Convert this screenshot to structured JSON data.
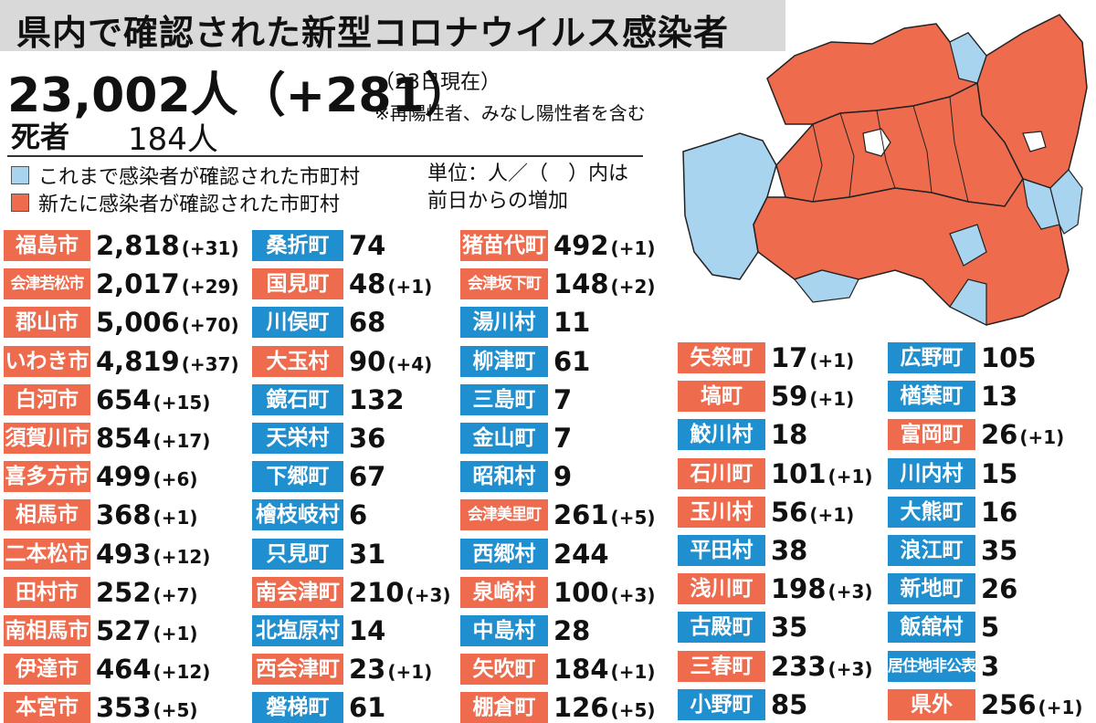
{
  "title": "県内で確認された新型コロナウイルス感染者",
  "summary": {
    "total": "23,002人（+281）",
    "as_of": "（23日現在）",
    "note": "※再陽性者、みなし陽性者を含む",
    "deaths_label": "死者",
    "deaths_value": "184人"
  },
  "legend": {
    "existing": "これまで感染者が確認された市町村",
    "new": "新たに感染者が確認された市町村",
    "unit_line1": "単位：人／（　）内は",
    "unit_line2": "前日からの増加"
  },
  "colors": {
    "new": "#ee6b4d",
    "existing": "#1f8fcf",
    "map_new": "#ee6b4d",
    "map_existing": "#a8d4ef",
    "title_bg": "#d9d9d9"
  },
  "chart_data": {
    "type": "table",
    "columns": [
      {
        "rows": [
          {
            "name": "福島市",
            "value": "2,818",
            "diff": "(+31)",
            "status": "new"
          },
          {
            "name": "会津若松市",
            "value": "2,017",
            "diff": "(+29)",
            "status": "new"
          },
          {
            "name": "郡山市",
            "value": "5,006",
            "diff": "(+70)",
            "status": "new"
          },
          {
            "name": "いわき市",
            "value": "4,819",
            "diff": "(+37)",
            "status": "new"
          },
          {
            "name": "白河市",
            "value": "654",
            "diff": "(+15)",
            "status": "new"
          },
          {
            "name": "須賀川市",
            "value": "854",
            "diff": "(+17)",
            "status": "new"
          },
          {
            "name": "喜多方市",
            "value": "499",
            "diff": "(+6)",
            "status": "new"
          },
          {
            "name": "相馬市",
            "value": "368",
            "diff": "(+1)",
            "status": "new"
          },
          {
            "name": "二本松市",
            "value": "493",
            "diff": "(+12)",
            "status": "new"
          },
          {
            "name": "田村市",
            "value": "252",
            "diff": "(+7)",
            "status": "new"
          },
          {
            "name": "南相馬市",
            "value": "527",
            "diff": "(+1)",
            "status": "new"
          },
          {
            "name": "伊達市",
            "value": "464",
            "diff": "(+12)",
            "status": "new"
          },
          {
            "name": "本宮市",
            "value": "353",
            "diff": "(+5)",
            "status": "new"
          }
        ]
      },
      {
        "rows": [
          {
            "name": "桑折町",
            "value": "74",
            "diff": "",
            "status": "existing"
          },
          {
            "name": "国見町",
            "value": "48",
            "diff": "(+1)",
            "status": "new"
          },
          {
            "name": "川俣町",
            "value": "68",
            "diff": "",
            "status": "existing"
          },
          {
            "name": "大玉村",
            "value": "90",
            "diff": "(+4)",
            "status": "new"
          },
          {
            "name": "鏡石町",
            "value": "132",
            "diff": "",
            "status": "existing"
          },
          {
            "name": "天栄村",
            "value": "36",
            "diff": "",
            "status": "existing"
          },
          {
            "name": "下郷町",
            "value": "67",
            "diff": "",
            "status": "existing"
          },
          {
            "name": "檜枝岐村",
            "value": "6",
            "diff": "",
            "status": "existing"
          },
          {
            "name": "只見町",
            "value": "31",
            "diff": "",
            "status": "existing"
          },
          {
            "name": "南会津町",
            "value": "210",
            "diff": "(+3)",
            "status": "new"
          },
          {
            "name": "北塩原村",
            "value": "14",
            "diff": "",
            "status": "existing"
          },
          {
            "name": "西会津町",
            "value": "23",
            "diff": "(+1)",
            "status": "new"
          },
          {
            "name": "磐梯町",
            "value": "61",
            "diff": "",
            "status": "existing"
          }
        ]
      },
      {
        "rows": [
          {
            "name": "猪苗代町",
            "value": "492",
            "diff": "(+1)",
            "status": "new"
          },
          {
            "name": "会津坂下町",
            "value": "148",
            "diff": "(+2)",
            "status": "new"
          },
          {
            "name": "湯川村",
            "value": "11",
            "diff": "",
            "status": "existing"
          },
          {
            "name": "柳津町",
            "value": "61",
            "diff": "",
            "status": "existing"
          },
          {
            "name": "三島町",
            "value": "7",
            "diff": "",
            "status": "existing"
          },
          {
            "name": "金山町",
            "value": "7",
            "diff": "",
            "status": "existing"
          },
          {
            "name": "昭和村",
            "value": "9",
            "diff": "",
            "status": "existing"
          },
          {
            "name": "会津美里町",
            "value": "261",
            "diff": "(+5)",
            "status": "new"
          },
          {
            "name": "西郷村",
            "value": "244",
            "diff": "",
            "status": "existing"
          },
          {
            "name": "泉崎村",
            "value": "100",
            "diff": "(+3)",
            "status": "new"
          },
          {
            "name": "中島村",
            "value": "28",
            "diff": "",
            "status": "existing"
          },
          {
            "name": "矢吹町",
            "value": "184",
            "diff": "(+1)",
            "status": "new"
          },
          {
            "name": "棚倉町",
            "value": "126",
            "diff": "(+5)",
            "status": "new"
          }
        ]
      },
      {
        "rows": [
          {
            "name": "矢祭町",
            "value": "17",
            "diff": "(+1)",
            "status": "new"
          },
          {
            "name": "塙町",
            "value": "59",
            "diff": "(+1)",
            "status": "new"
          },
          {
            "name": "鮫川村",
            "value": "18",
            "diff": "",
            "status": "existing"
          },
          {
            "name": "石川町",
            "value": "101",
            "diff": "(+1)",
            "status": "new"
          },
          {
            "name": "玉川村",
            "value": "56",
            "diff": "(+1)",
            "status": "new"
          },
          {
            "name": "平田村",
            "value": "38",
            "diff": "",
            "status": "existing"
          },
          {
            "name": "浅川町",
            "value": "198",
            "diff": "(+3)",
            "status": "new"
          },
          {
            "name": "古殿町",
            "value": "35",
            "diff": "",
            "status": "existing"
          },
          {
            "name": "三春町",
            "value": "233",
            "diff": "(+3)",
            "status": "new"
          },
          {
            "name": "小野町",
            "value": "85",
            "diff": "",
            "status": "existing"
          }
        ]
      },
      {
        "rows": [
          {
            "name": "広野町",
            "value": "105",
            "diff": "",
            "status": "existing"
          },
          {
            "name": "楢葉町",
            "value": "13",
            "diff": "",
            "status": "existing"
          },
          {
            "name": "富岡町",
            "value": "26",
            "diff": "(+1)",
            "status": "new"
          },
          {
            "name": "川内村",
            "value": "15",
            "diff": "",
            "status": "existing"
          },
          {
            "name": "大熊町",
            "value": "16",
            "diff": "",
            "status": "existing"
          },
          {
            "name": "浪江町",
            "value": "35",
            "diff": "",
            "status": "existing"
          },
          {
            "name": "新地町",
            "value": "26",
            "diff": "",
            "status": "existing"
          },
          {
            "name": "飯舘村",
            "value": "5",
            "diff": "",
            "status": "existing"
          },
          {
            "name": "居住地非公表",
            "value": "3",
            "diff": "",
            "status": "existing"
          },
          {
            "name": "県外",
            "value": "256",
            "diff": "(+1)",
            "status": "new"
          }
        ]
      }
    ]
  }
}
